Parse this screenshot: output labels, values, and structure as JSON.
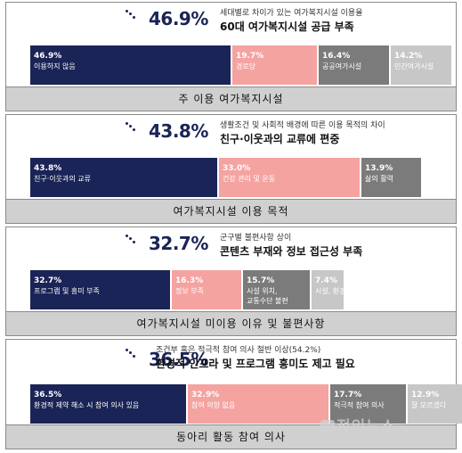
{
  "chart_data": [
    {
      "type": "bar",
      "title": "주 이용 여가복지시설",
      "headline_value": "46.9%",
      "subtitle": "세대별로 차이가 있는 여가복지시설 이용율",
      "headline": "60대 여가복지시설 공급 부족",
      "categories": [
        "이용하지 않음",
        "경로당",
        "공공여가시설",
        "민간여가시설"
      ],
      "values": [
        46.9,
        19.7,
        16.4,
        14.2
      ],
      "value_labels": [
        "46.9%",
        "19.7%",
        "16.4%",
        "14.2%"
      ],
      "colors": [
        "#1a2456",
        "#f4a3a1",
        "#7b7b7b",
        "#c7c7c7"
      ]
    },
    {
      "type": "bar",
      "title": "여가복지시설 이용 목적",
      "headline_value": "43.8%",
      "subtitle": "생활조건 및 사회적 배경에 따른 이용 목적의 차이",
      "headline": "친구·이웃과의 교류에 편중",
      "categories": [
        "친구·이웃과의 교류",
        "건강 관리 및 운동",
        "삶의 활력"
      ],
      "values": [
        43.8,
        33.0,
        13.9
      ],
      "value_labels": [
        "43.8%",
        "33.0%",
        "13.9%"
      ],
      "colors": [
        "#1a2456",
        "#f4a3a1",
        "#7b7b7b"
      ]
    },
    {
      "type": "bar",
      "title": "여가복지시설 미이용 이유 및 불편사항",
      "headline_value": "32.7%",
      "subtitle": "군구별 불편사항 상이",
      "headline": "콘텐츠 부재와 정보 접근성 부족",
      "categories": [
        "프로그램 및 흥미 부족",
        "정보 부족",
        "시설 위치, 교통수단 불편",
        "시설, 환경 열악"
      ],
      "values": [
        32.7,
        16.3,
        15.7,
        7.4
      ],
      "value_labels": [
        "32.7%",
        "16.3%",
        "15.7%",
        "7.4%"
      ],
      "colors": [
        "#1a2456",
        "#f4a3a1",
        "#7b7b7b",
        "#c7c7c7"
      ]
    },
    {
      "type": "bar",
      "title": "동아리 활동 참여 의사",
      "headline_value": "36.5%",
      "subtitle": "조건부 혹은 적극적 참여 의사 절반 이상(54.2%)",
      "headline": "환경적 인프라 및 프로그램 흥미도 제고 필요",
      "categories": [
        "환경적 제약 해소 시 참여 의사 있음",
        "참여 의향 없음",
        "적극적 참여 의사",
        "잘 모르겠다"
      ],
      "values": [
        36.5,
        32.9,
        17.7,
        12.9
      ],
      "value_labels": [
        "36.5%",
        "32.9%",
        "17.7%",
        "12.9%"
      ],
      "colors": [
        "#1a2456",
        "#f4a3a1",
        "#7b7b7b",
        "#c7c7c7"
      ]
    }
  ],
  "watermark": "정인뉴스"
}
